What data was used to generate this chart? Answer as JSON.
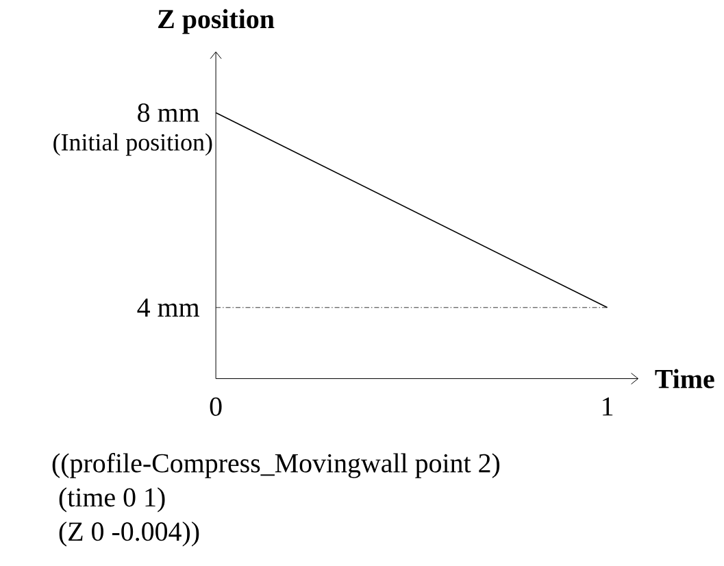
{
  "chart_data": {
    "type": "line",
    "title": "Z position",
    "xlabel": "Time",
    "x": [
      0,
      1
    ],
    "values": [
      8,
      4
    ],
    "color": "#000000",
    "marker": "none",
    "line_style": "solid",
    "xlim": [
      0,
      1.08
    ],
    "ylim": [
      2.54,
      9.26
    ],
    "xticks": [
      0,
      1
    ],
    "yticks": [
      {
        "value": 4,
        "label": "4 mm"
      },
      {
        "value": 8,
        "label": "8 mm"
      }
    ],
    "ref_lines": [
      {
        "axis": "y",
        "value": 4,
        "color": "#000000",
        "line_style": "dashed"
      }
    ],
    "annotations": [
      {
        "text": "(Initial position)",
        "x": 0,
        "y": 8
      },
      "((profile-Compress_Movingwall point 2)",
      " (time 0 1)",
      " (Z  0 -0.004))"
    ]
  }
}
